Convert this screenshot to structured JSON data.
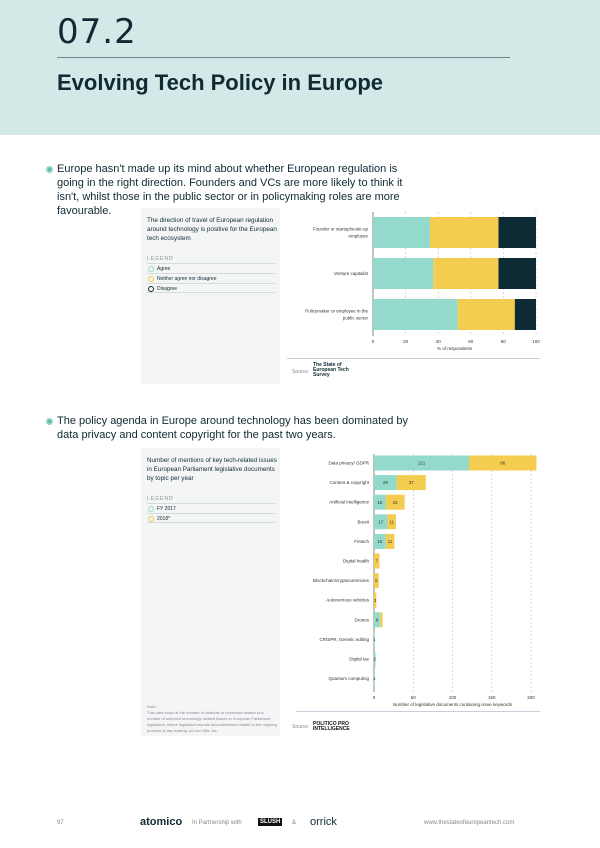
{
  "header": {
    "section_number": "07.2",
    "title": "Evolving Tech Policy in Europe"
  },
  "section1": {
    "lead": "Europe hasn't made up its mind about whether European regulation is going in the right direction. Founders and VCs are more likely to think it isn't, whilst those in the public sector or in policymaking roles are more favourable.",
    "panel_title": "The direction of travel of European regulation around technology is positive for the European tech ecosystem",
    "legend_heading": "LEGEND",
    "source_label": "Source:",
    "source_logo": "The State of European Tech Survey"
  },
  "section2": {
    "lead": "The policy agenda in Europe around technology has been dominated by data privacy and content copyright for the past two years.",
    "panel_title": "Number of mentions of key tech-related issues in European Parliament legislative documents by topic per year",
    "legend_heading": "LEGEND",
    "note_label": "Note:",
    "note": "This data looks at the number of citations of keywords related to a number of selected technology-related issues in European Parliament legislation, where legislation equals documentation related to the ongoing process of law-making, ad-hoc bills, etc.",
    "source_label": "Source:",
    "source_logo": "POLITICO PRO INTELLIGENCE"
  },
  "chart_data": [
    {
      "type": "bar",
      "orientation": "horizontal",
      "stacked": true,
      "categories": [
        "Founder or startup/scale-up employee",
        "Venture capitalist",
        "Policymaker or employee in the public sector"
      ],
      "series": [
        {
          "name": "Agree",
          "color": "#93d9cc",
          "values": [
            35,
            37,
            52
          ]
        },
        {
          "name": "Neither agree nor disagree",
          "color": "#f4cc4f",
          "values": [
            42,
            40,
            35
          ]
        },
        {
          "name": "Disagree",
          "color": "#0d2a35",
          "values": [
            23,
            23,
            13
          ]
        }
      ],
      "xlabel": "% of respondents",
      "xlim": [
        0,
        100
      ],
      "xticks": [
        0,
        20,
        40,
        60,
        80,
        100
      ],
      "grid": true,
      "legend": "left panel"
    },
    {
      "type": "bar",
      "orientation": "horizontal",
      "stacked": true,
      "categories": [
        "Data privacy/ GDPR",
        "Content & copyright",
        "Artificial Intelligence",
        "Brexit",
        "Fintech",
        "Digital health",
        "Blockchain/cryptocurrencies",
        "Autonomous vehicles",
        "Drones",
        "CRISPR, Genetic editing",
        "Digital tax",
        "Quantum computing"
      ],
      "series": [
        {
          "name": "FY 2017",
          "color": "#93d9cc",
          "values": [
            121,
            29,
            15,
            17,
            15,
            0,
            0,
            0,
            8,
            1,
            2,
            1
          ]
        },
        {
          "name": "2018*",
          "color": "#f4cc4f",
          "values": [
            86,
            37,
            24,
            11,
            11,
            7,
            6,
            3,
            3,
            0,
            0,
            0
          ]
        }
      ],
      "data_labels": [
        [
          "121",
          "29",
          "15",
          "17",
          "15",
          "",
          "",
          "",
          "8",
          "1",
          "2",
          "1"
        ],
        [
          "86",
          "37",
          "24",
          "11",
          "11",
          "7",
          "6",
          "3",
          "",
          "",
          "",
          ""
        ]
      ],
      "xlabel": "Number of legislative documents containing issue keywords",
      "xlim": [
        0,
        200
      ],
      "xticks": [
        0,
        50,
        100,
        150,
        200
      ],
      "grid": true,
      "legend": "left panel"
    }
  ],
  "footer": {
    "page": "97",
    "brand": "atomico",
    "partner_text": "In Partnership with",
    "partner1": "SLUSH",
    "amp": "&",
    "partner2": "orrick",
    "url": "www.thestateofeuropeantech.com"
  }
}
